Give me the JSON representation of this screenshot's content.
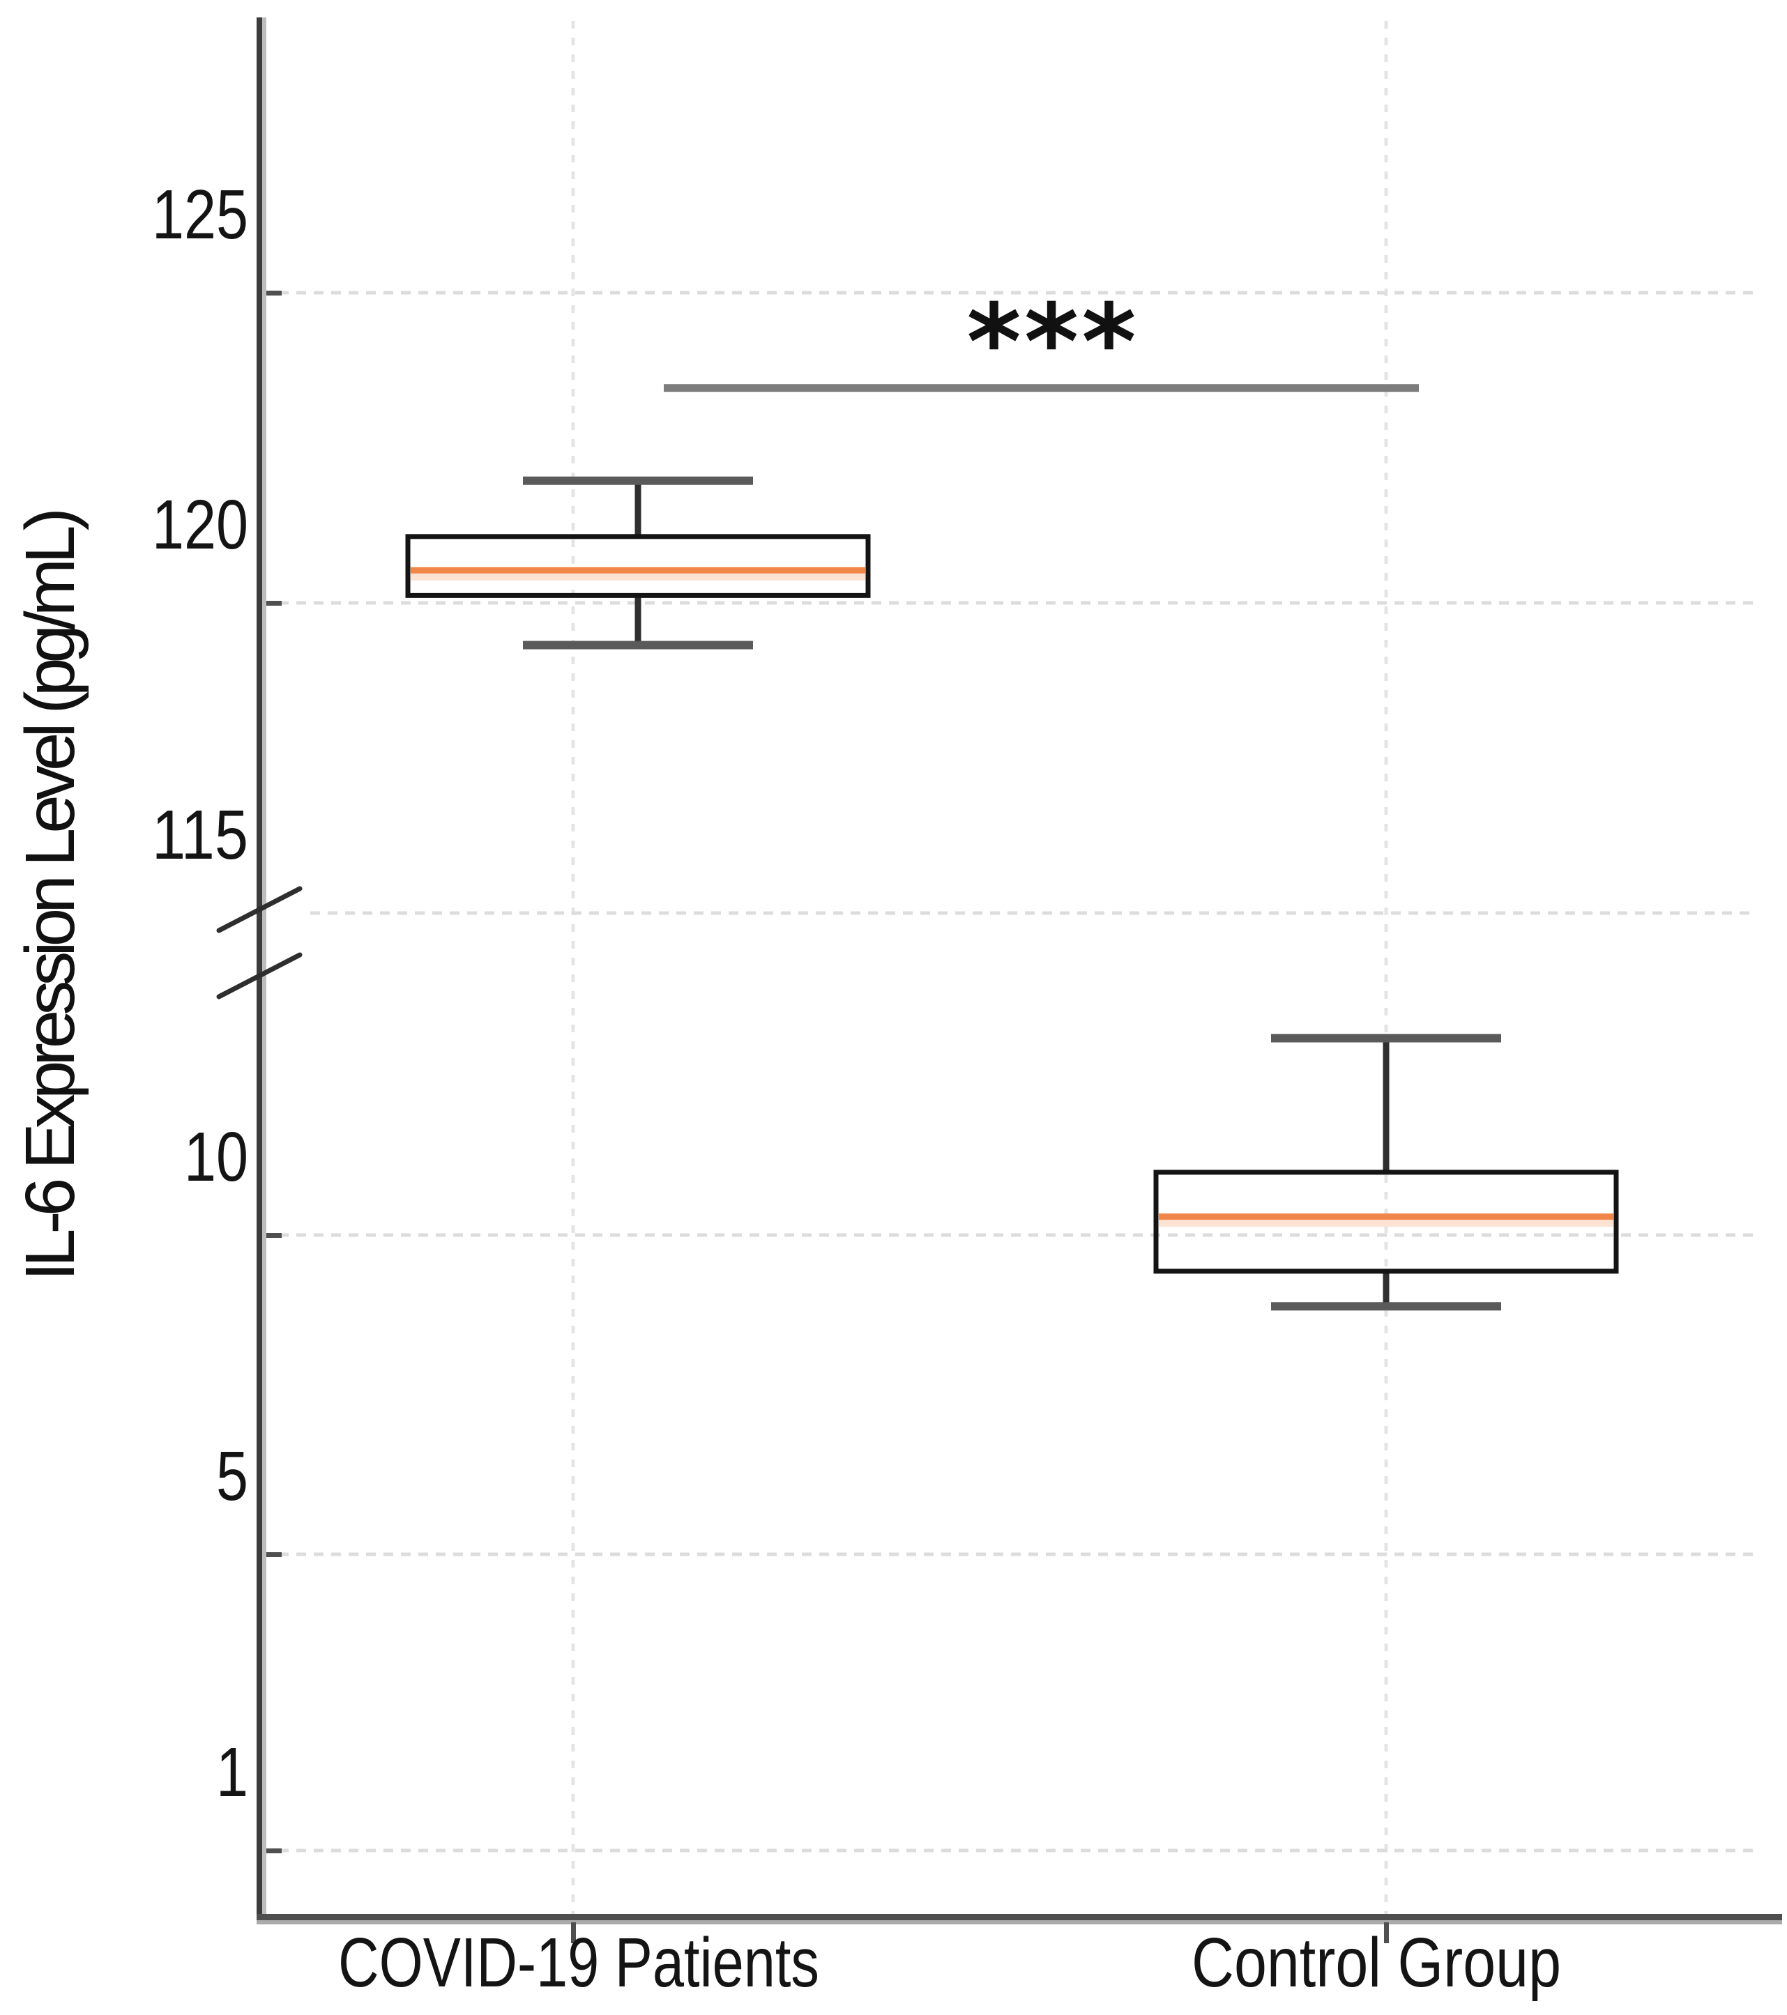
{
  "chart_data": {
    "type": "box",
    "title": "",
    "xlabel": "",
    "ylabel": "IL-6 Expression Level (pg/mL)",
    "categories": [
      "COVID-19 Patients",
      "Control Group"
    ],
    "y_axis": {
      "broken": true,
      "upper_ticks": [
        125,
        120,
        115
      ],
      "lower_ticks": [
        10,
        5,
        1
      ],
      "upper_range": [
        113.5,
        126.5
      ],
      "lower_range": [
        0,
        12.5
      ],
      "grid": true,
      "grid_style": "dotted"
    },
    "series": [
      {
        "name": "COVID-19 Patients",
        "whislo": 118.05,
        "q1": 118.85,
        "med": 119.25,
        "q3": 119.8,
        "whishi": 120.7
      },
      {
        "name": "Control Group",
        "whislo": 7.65,
        "q1": 8.2,
        "med": 9.05,
        "q3": 9.75,
        "whishi": 11.85
      }
    ],
    "significance": {
      "label": "***",
      "between": [
        "COVID-19 Patients",
        "Control Group"
      ],
      "y_value": 122.2
    },
    "colors": {
      "median": "#f08648",
      "median_halo": "#fbe2d2",
      "box_border": "#141414",
      "whisker_stem": "#2f2f2f",
      "whisker_cap": "#5a5a5a",
      "sig_bar": "#7c7c7c",
      "h_gridline": "#dcdcdc",
      "v_gridline": "#e4e4e4",
      "spine_dark": "#3c3c3c",
      "spine_light": "#bdbdbd",
      "tick_stub": "#4f4f4f",
      "text": "#141414"
    }
  }
}
